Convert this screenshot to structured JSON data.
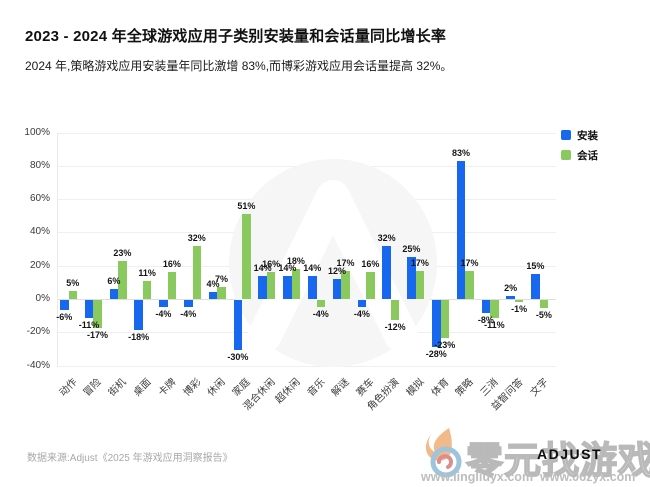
{
  "header": {
    "title": "2023 - 2024 年全球游戏应用子类别安装量和会话量同比增长率",
    "subtitle": "2024 年,策略游戏应用安装量年同比激增 83%,而博彩游戏应用会话量提高 32%。"
  },
  "legend": [
    {
      "label": "安装",
      "color": "#1767ef"
    },
    {
      "label": "会话",
      "color": "#8ac95e"
    }
  ],
  "chart_data": {
    "type": "bar",
    "categories": [
      "动作",
      "冒险",
      "街机",
      "桌面",
      "卡牌",
      "博彩",
      "休闲",
      "家庭",
      "混合休闲",
      "超休闲",
      "音乐",
      "解谜",
      "赛车",
      "角色扮演",
      "模拟",
      "体育",
      "策略",
      "三消",
      "益智问答",
      "文字"
    ],
    "series": [
      {
        "name": "安装",
        "color": "#1767ef",
        "values": [
          -6,
          -11,
          6,
          -18,
          -4,
          -4,
          4,
          -30,
          14,
          14,
          14,
          12,
          -4,
          32,
          25,
          -28,
          83,
          -8,
          2,
          15
        ]
      },
      {
        "name": "会话",
        "color": "#8ac95e",
        "values": [
          5,
          -17,
          23,
          11,
          16,
          32,
          7,
          51,
          16,
          18,
          -4,
          17,
          16,
          -12,
          17,
          -23,
          17,
          -11,
          -1,
          -5
        ]
      }
    ],
    "title": "2023 - 2024 年全球游戏应用子类别安装量和会话量同比增长率",
    "xlabel": "",
    "ylabel": "",
    "ylim": [
      -40,
      100
    ],
    "ytick_step": 20,
    "unit": "%",
    "grid": true,
    "legend_position": "top-right"
  },
  "footer": {
    "source": "数据来源:Adjust《2025 年游戏应用洞察报告》"
  },
  "watermark": {
    "site_name": "零元找游戏",
    "url_left": "www.lingliuyx.com",
    "url_right": "www.06zyx.com",
    "brand": "ADJUST"
  }
}
